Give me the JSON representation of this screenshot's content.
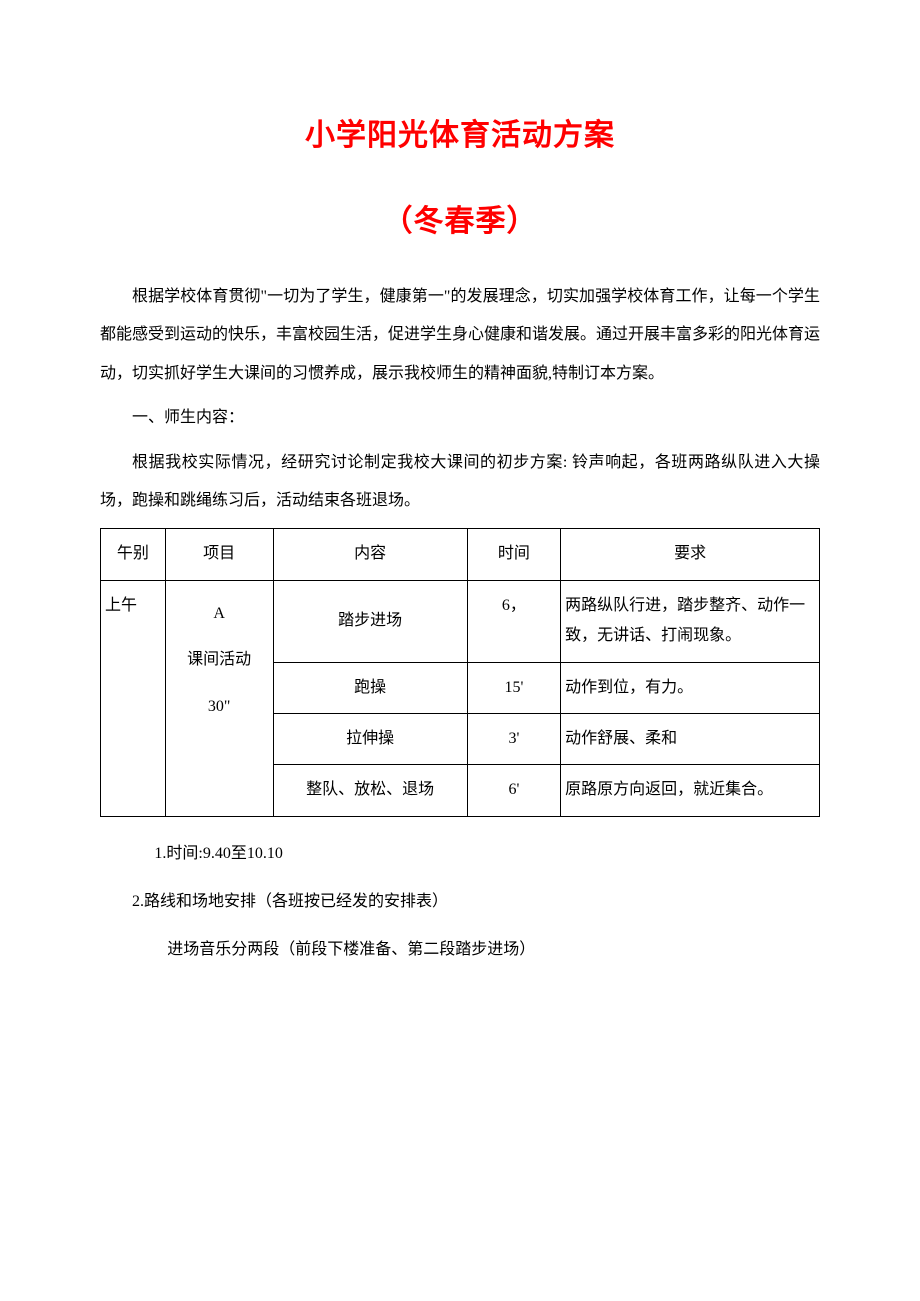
{
  "title": "小学阳光体育活动方案",
  "subtitle": "（冬春季）",
  "intro_paragraph": "根据学校体育贯彻\"一切为了学生，健康第一\"的发展理念，切实加强学校体育工作，让每一个学生都能感受到运动的快乐，丰富校园生活，促进学生身心健康和谐发展。通过开展丰富多彩的阳光体育运动，切实抓好学生大课间的习惯养成，展示我校师生的精神面貌,特制订本方案。",
  "section1_heading": "一、师生内容：",
  "section1_paragraph": "根据我校实际情况，经研究讨论制定我校大课间的初步方案: 铃声响起，各班两路纵队进入大操场，跑操和跳绳练习后，活动结束各班退场。",
  "table": {
    "columns": [
      "午别",
      "项目",
      "内容",
      "时间",
      "要求"
    ],
    "period": "上午",
    "project_lines": [
      "A",
      "课间活动",
      "30\""
    ],
    "rows": [
      {
        "content": "踏步进场",
        "time": "6，",
        "req": "两路纵队行进，踏步整齐、动作一致，无讲话、打闹现象。"
      },
      {
        "content": "跑操",
        "time": "15'",
        "req": "动作到位，有力。"
      },
      {
        "content": "拉伸操",
        "time": "3'",
        "req": "动作舒展、柔和"
      },
      {
        "content": "整队、放松、退场",
        "time": "6'",
        "req": "原路原方向返回，就近集合。"
      }
    ],
    "col_widths": [
      "9%",
      "15%",
      "27%",
      "13%",
      "36%"
    ],
    "border_color": "#000000",
    "font_size": 16,
    "text_color": "#000000"
  },
  "notes": {
    "line1": "1.时间:9.40至10.10",
    "line2": "2.路线和场地安排（各班按已经发的安排表）",
    "line3": "进场音乐分两段（前段下楼准备、第二段踏步进场）"
  },
  "colors": {
    "title_color": "#ff0000",
    "text_color": "#000000",
    "background_color": "#ffffff",
    "border_color": "#000000"
  },
  "typography": {
    "title_fontsize": 30,
    "body_fontsize": 16,
    "title_weight": "bold",
    "font_family": "SimSun"
  }
}
